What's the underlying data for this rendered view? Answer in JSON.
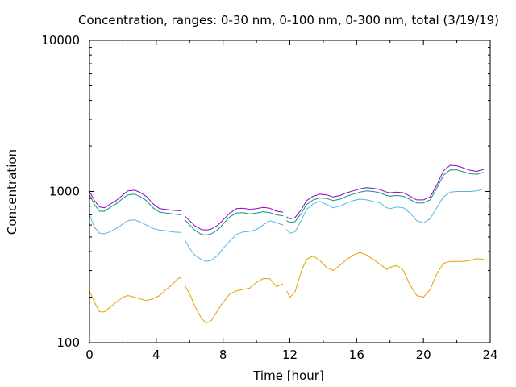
{
  "chart_data": {
    "type": "line",
    "title": "Concentration, ranges: 0-30 nm, 0-100 nm, 0-300 nm, total (3/19/19)",
    "xlabel": "Time [hour]",
    "ylabel": "Concentration",
    "xlim": [
      0,
      24
    ],
    "ylim": [
      100,
      10000
    ],
    "yscale": "log",
    "grid": false,
    "x_ticks": [
      0,
      4,
      8,
      12,
      16,
      20,
      24
    ],
    "x_tick_labels": [
      "0",
      "4",
      "8",
      "12",
      "16",
      "20",
      "24"
    ],
    "y_ticks": [
      100,
      1000,
      10000
    ],
    "y_tick_labels": [
      "100",
      "1000",
      "10000"
    ],
    "series": [
      {
        "color": "#9400d3",
        "points": [
          [
            0,
            1000
          ],
          [
            0.3,
            870
          ],
          [
            0.6,
            790
          ],
          [
            0.9,
            780
          ],
          [
            1.2,
            820
          ],
          [
            1.6,
            870
          ],
          [
            2.0,
            950
          ],
          [
            2.3,
            1010
          ],
          [
            2.7,
            1020
          ],
          [
            3.0,
            990
          ],
          [
            3.4,
            930
          ],
          [
            3.8,
            830
          ],
          [
            4.2,
            770
          ],
          [
            4.6,
            760
          ],
          [
            5.0,
            750
          ],
          [
            5.5,
            745
          ],
          null,
          [
            5.7,
            690
          ],
          [
            6.0,
            640
          ],
          [
            6.3,
            595
          ],
          [
            6.7,
            560
          ],
          [
            7.0,
            555
          ],
          [
            7.3,
            565
          ],
          [
            7.7,
            600
          ],
          [
            8.0,
            650
          ],
          [
            8.4,
            720
          ],
          [
            8.8,
            770
          ],
          [
            9.2,
            775
          ],
          [
            9.6,
            760
          ],
          [
            10.0,
            770
          ],
          [
            10.4,
            785
          ],
          [
            10.8,
            775
          ],
          [
            11.2,
            740
          ],
          [
            11.6,
            730
          ],
          null,
          [
            11.8,
            680
          ],
          [
            12.0,
            660
          ],
          [
            12.3,
            670
          ],
          [
            12.7,
            760
          ],
          [
            13.0,
            870
          ],
          [
            13.4,
            930
          ],
          [
            13.8,
            960
          ],
          [
            14.2,
            950
          ],
          [
            14.6,
            920
          ],
          [
            15.0,
            940
          ],
          [
            15.4,
            980
          ],
          [
            15.8,
            1010
          ],
          [
            16.2,
            1040
          ],
          [
            16.6,
            1060
          ],
          [
            17.0,
            1050
          ],
          [
            17.4,
            1030
          ],
          [
            17.8,
            990
          ],
          [
            18.0,
            980
          ],
          [
            18.4,
            990
          ],
          [
            18.8,
            980
          ],
          [
            19.2,
            930
          ],
          [
            19.6,
            880
          ],
          [
            20.0,
            880
          ],
          [
            20.4,
            920
          ],
          [
            20.8,
            1100
          ],
          [
            21.2,
            1370
          ],
          [
            21.6,
            1490
          ],
          [
            22.0,
            1480
          ],
          [
            22.4,
            1430
          ],
          [
            22.8,
            1380
          ],
          [
            23.2,
            1360
          ],
          [
            23.6,
            1400
          ]
        ]
      },
      {
        "color": "#009e73",
        "points": [
          [
            0,
            950
          ],
          [
            0.3,
            820
          ],
          [
            0.6,
            740
          ],
          [
            0.9,
            740
          ],
          [
            1.2,
            780
          ],
          [
            1.6,
            830
          ],
          [
            2.0,
            900
          ],
          [
            2.3,
            950
          ],
          [
            2.7,
            960
          ],
          [
            3.0,
            930
          ],
          [
            3.4,
            870
          ],
          [
            3.8,
            780
          ],
          [
            4.2,
            730
          ],
          [
            4.6,
            720
          ],
          [
            5.0,
            710
          ],
          [
            5.5,
            700
          ],
          null,
          [
            5.7,
            650
          ],
          [
            6.0,
            600
          ],
          [
            6.3,
            555
          ],
          [
            6.7,
            520
          ],
          [
            7.0,
            515
          ],
          [
            7.3,
            525
          ],
          [
            7.7,
            560
          ],
          [
            8.0,
            610
          ],
          [
            8.4,
            680
          ],
          [
            8.8,
            720
          ],
          [
            9.2,
            725
          ],
          [
            9.6,
            710
          ],
          [
            10.0,
            720
          ],
          [
            10.4,
            735
          ],
          [
            10.8,
            725
          ],
          [
            11.2,
            700
          ],
          [
            11.6,
            690
          ],
          null,
          [
            11.8,
            640
          ],
          [
            12.0,
            625
          ],
          [
            12.3,
            630
          ],
          [
            12.7,
            720
          ],
          [
            13.0,
            820
          ],
          [
            13.4,
            880
          ],
          [
            13.8,
            905
          ],
          [
            14.2,
            900
          ],
          [
            14.6,
            870
          ],
          [
            15.0,
            890
          ],
          [
            15.4,
            930
          ],
          [
            15.8,
            960
          ],
          [
            16.2,
            990
          ],
          [
            16.6,
            1010
          ],
          [
            17.0,
            1000
          ],
          [
            17.4,
            980
          ],
          [
            17.8,
            940
          ],
          [
            18.0,
            930
          ],
          [
            18.4,
            940
          ],
          [
            18.8,
            930
          ],
          [
            19.2,
            885
          ],
          [
            19.6,
            840
          ],
          [
            20.0,
            840
          ],
          [
            20.4,
            880
          ],
          [
            20.8,
            1050
          ],
          [
            21.2,
            1280
          ],
          [
            21.6,
            1390
          ],
          [
            22.0,
            1390
          ],
          [
            22.4,
            1350
          ],
          [
            22.8,
            1310
          ],
          [
            23.2,
            1300
          ],
          [
            23.6,
            1340
          ]
        ]
      },
      {
        "color": "#56b4e9",
        "points": [
          [
            0,
            700
          ],
          [
            0.3,
            580
          ],
          [
            0.6,
            530
          ],
          [
            0.9,
            525
          ],
          [
            1.2,
            540
          ],
          [
            1.6,
            570
          ],
          [
            2.0,
            610
          ],
          [
            2.3,
            640
          ],
          [
            2.7,
            650
          ],
          [
            3.0,
            630
          ],
          [
            3.4,
            600
          ],
          [
            3.8,
            570
          ],
          [
            4.2,
            555
          ],
          [
            4.6,
            550
          ],
          [
            5.0,
            540
          ],
          [
            5.5,
            535
          ],
          null,
          [
            5.7,
            480
          ],
          [
            6.0,
            420
          ],
          [
            6.3,
            380
          ],
          [
            6.7,
            355
          ],
          [
            7.0,
            345
          ],
          [
            7.3,
            350
          ],
          [
            7.7,
            380
          ],
          [
            8.0,
            420
          ],
          [
            8.4,
            470
          ],
          [
            8.8,
            520
          ],
          [
            9.2,
            540
          ],
          [
            9.6,
            545
          ],
          [
            10.0,
            560
          ],
          [
            10.4,
            600
          ],
          [
            10.8,
            640
          ],
          [
            11.2,
            620
          ],
          [
            11.6,
            600
          ],
          null,
          [
            11.8,
            560
          ],
          [
            12.0,
            530
          ],
          [
            12.3,
            540
          ],
          [
            12.7,
            650
          ],
          [
            13.0,
            760
          ],
          [
            13.4,
            830
          ],
          [
            13.8,
            860
          ],
          [
            14.2,
            820
          ],
          [
            14.6,
            780
          ],
          [
            15.0,
            800
          ],
          [
            15.4,
            840
          ],
          [
            15.8,
            870
          ],
          [
            16.2,
            890
          ],
          [
            16.6,
            880
          ],
          [
            17.0,
            860
          ],
          [
            17.4,
            840
          ],
          [
            17.8,
            780
          ],
          [
            18.0,
            770
          ],
          [
            18.4,
            790
          ],
          [
            18.8,
            780
          ],
          [
            19.2,
            720
          ],
          [
            19.6,
            640
          ],
          [
            20.0,
            620
          ],
          [
            20.4,
            660
          ],
          [
            20.8,
            780
          ],
          [
            21.2,
            920
          ],
          [
            21.6,
            990
          ],
          [
            22.0,
            1000
          ],
          [
            22.4,
            1000
          ],
          [
            22.8,
            1000
          ],
          [
            23.2,
            1010
          ],
          [
            23.6,
            1040
          ]
        ]
      },
      {
        "color": "#e69f00",
        "points": [
          [
            0,
            220
          ],
          [
            0.3,
            185
          ],
          [
            0.6,
            160
          ],
          [
            0.9,
            160
          ],
          [
            1.2,
            170
          ],
          [
            1.6,
            185
          ],
          [
            2.0,
            200
          ],
          [
            2.3,
            205
          ],
          [
            2.7,
            200
          ],
          [
            3.0,
            195
          ],
          [
            3.4,
            190
          ],
          [
            3.8,
            195
          ],
          [
            4.2,
            205
          ],
          [
            4.6,
            225
          ],
          [
            5.0,
            245
          ],
          [
            5.3,
            265
          ],
          [
            5.5,
            270
          ],
          null,
          [
            5.7,
            240
          ],
          [
            6.0,
            210
          ],
          [
            6.3,
            175
          ],
          [
            6.7,
            145
          ],
          [
            7.0,
            135
          ],
          [
            7.3,
            140
          ],
          [
            7.7,
            165
          ],
          [
            8.0,
            185
          ],
          [
            8.4,
            210
          ],
          [
            8.8,
            220
          ],
          [
            9.2,
            225
          ],
          [
            9.6,
            230
          ],
          [
            10.0,
            250
          ],
          [
            10.4,
            265
          ],
          [
            10.8,
            265
          ],
          [
            11.2,
            235
          ],
          [
            11.6,
            245
          ],
          null,
          [
            11.8,
            220
          ],
          [
            12.0,
            200
          ],
          [
            12.3,
            215
          ],
          [
            12.7,
            300
          ],
          [
            13.0,
            355
          ],
          [
            13.4,
            375
          ],
          [
            13.8,
            350
          ],
          [
            14.2,
            315
          ],
          [
            14.6,
            300
          ],
          [
            15.0,
            325
          ],
          [
            15.4,
            355
          ],
          [
            15.8,
            380
          ],
          [
            16.2,
            395
          ],
          [
            16.6,
            380
          ],
          [
            17.0,
            355
          ],
          [
            17.4,
            330
          ],
          [
            17.8,
            305
          ],
          [
            18.0,
            315
          ],
          [
            18.4,
            325
          ],
          [
            18.8,
            300
          ],
          [
            19.2,
            240
          ],
          [
            19.6,
            205
          ],
          [
            20.0,
            200
          ],
          [
            20.4,
            225
          ],
          [
            20.8,
            285
          ],
          [
            21.2,
            335
          ],
          [
            21.6,
            345
          ],
          [
            22.0,
            345
          ],
          [
            22.4,
            345
          ],
          [
            22.8,
            350
          ],
          [
            23.2,
            360
          ],
          [
            23.6,
            355
          ]
        ]
      }
    ]
  }
}
